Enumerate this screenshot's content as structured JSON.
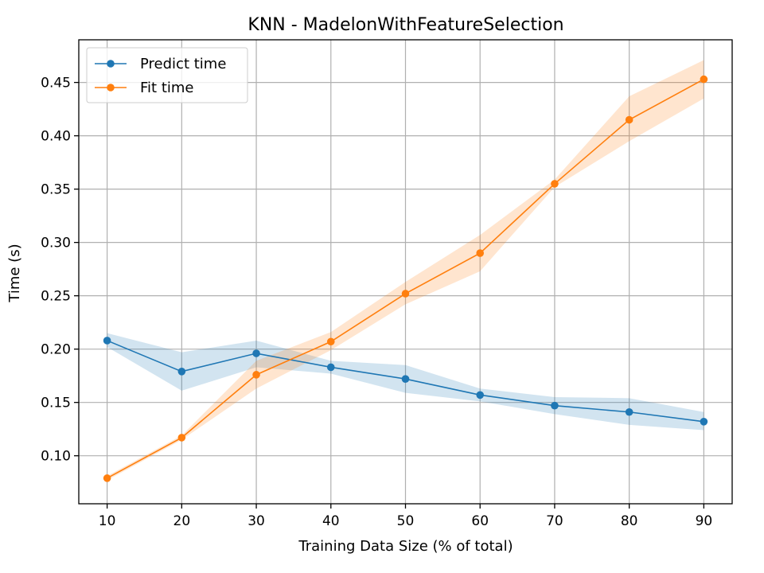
{
  "chart_data": {
    "type": "line",
    "title": "KNN - MadelonWithFeatureSelection",
    "xlabel": "Training Data Size (% of total)",
    "ylabel": "Time (s)",
    "x": [
      10,
      20,
      30,
      40,
      50,
      60,
      70,
      80,
      90
    ],
    "xticks": [
      10,
      20,
      30,
      40,
      50,
      60,
      70,
      80,
      90
    ],
    "yticks": [
      0.1,
      0.15,
      0.2,
      0.25,
      0.3,
      0.35,
      0.4,
      0.45
    ],
    "xlim": [
      6.2,
      93.8
    ],
    "ylim": [
      0.055,
      0.49
    ],
    "grid": true,
    "legend_position": "top-left",
    "series": [
      {
        "name": "Predict time",
        "color": "#1f77b4",
        "values": [
          0.208,
          0.179,
          0.196,
          0.183,
          0.172,
          0.157,
          0.147,
          0.141,
          0.132
        ],
        "band_lower": [
          0.202,
          0.161,
          0.183,
          0.177,
          0.159,
          0.151,
          0.139,
          0.129,
          0.124
        ],
        "band_upper": [
          0.215,
          0.197,
          0.208,
          0.189,
          0.185,
          0.163,
          0.155,
          0.154,
          0.141
        ]
      },
      {
        "name": "Fit time",
        "color": "#ff7f0e",
        "values": [
          0.079,
          0.117,
          0.176,
          0.207,
          0.252,
          0.29,
          0.355,
          0.415,
          0.453
        ],
        "band_lower": [
          0.077,
          0.115,
          0.163,
          0.199,
          0.242,
          0.273,
          0.352,
          0.395,
          0.435
        ],
        "band_upper": [
          0.081,
          0.119,
          0.189,
          0.216,
          0.263,
          0.307,
          0.359,
          0.437,
          0.471
        ]
      }
    ]
  }
}
